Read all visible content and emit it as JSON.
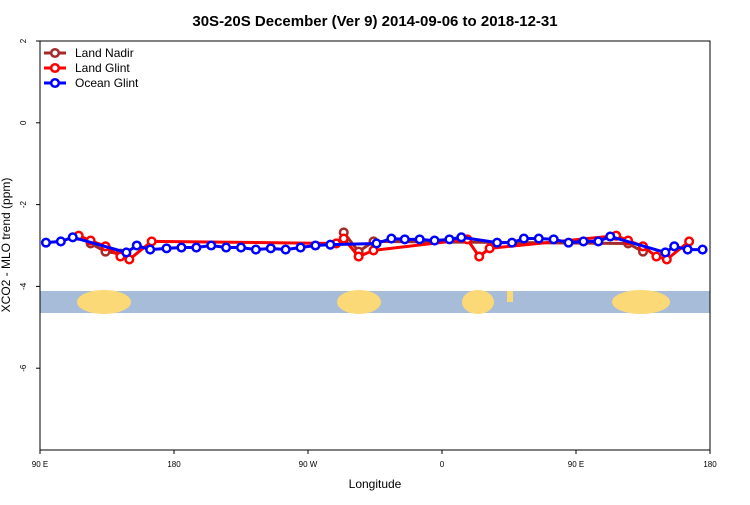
{
  "chart_data": {
    "type": "line",
    "title": "30S-20S December (Ver 9)   2014-09-06 to 2018-12-31",
    "xlabel": "Longitude",
    "ylabel": "XCO2 - MLO trend (ppm)",
    "xlim": [
      90,
      540
    ],
    "ylim": [
      -8,
      2
    ],
    "xticks": [
      {
        "value": 90,
        "label": "90 E"
      },
      180,
      {
        "value": 270,
        "label": "90 W"
      },
      {
        "value": 360,
        "label": "0"
      },
      {
        "value": 450,
        "label": "90 E"
      },
      {
        "value": 540,
        "label": "180"
      }
    ],
    "yticks": [
      -6,
      -4,
      -2,
      0,
      2
    ],
    "legend": "top-left",
    "series": [
      {
        "name": "Land Nadir",
        "color": "#a52a2a",
        "x": [
          124,
          134,
          144,
          289,
          294,
          304,
          314,
          485,
          495
        ],
        "values": [
          -2.95,
          -3.15,
          -3.2,
          null,
          -2.68,
          -3.15,
          -2.9,
          -2.95,
          -3.15
        ]
      },
      {
        "name": "Land Glint",
        "color": "#ff0000",
        "x": [
          116,
          124,
          134,
          144,
          150,
          165,
          289,
          294,
          304,
          314,
          377,
          385,
          392,
          477,
          485,
          495,
          504,
          511,
          526
        ],
        "values": [
          -2.76,
          -2.88,
          -3.02,
          -3.27,
          -3.34,
          -2.9,
          -2.95,
          -2.83,
          -3.27,
          -3.12,
          -2.85,
          -3.27,
          -3.07,
          -2.76,
          -2.88,
          -3.02,
          -3.27,
          -3.34,
          -2.9
        ]
      },
      {
        "name": "Ocean Glint",
        "color": "#0000ff",
        "x": [
          94,
          104,
          112,
          148,
          155,
          164,
          175,
          185,
          195,
          205,
          215,
          225,
          235,
          245,
          255,
          265,
          275,
          285,
          316,
          326,
          335,
          345,
          355,
          365,
          373,
          397,
          407,
          415,
          425,
          435,
          445,
          455,
          465,
          473,
          510,
          516,
          525,
          535
        ],
        "values": [
          -2.93,
          -2.9,
          -2.8,
          -3.17,
          -3.0,
          -3.1,
          -3.07,
          -3.05,
          -3.05,
          -3.0,
          -3.05,
          -3.05,
          -3.1,
          -3.07,
          -3.1,
          -3.05,
          -3.0,
          -2.98,
          -2.95,
          -2.83,
          -2.85,
          -2.85,
          -2.88,
          -2.85,
          -2.8,
          -2.93,
          -2.93,
          -2.83,
          -2.83,
          -2.85,
          -2.93,
          -2.9,
          -2.9,
          -2.78,
          -3.17,
          -3.02,
          -3.1,
          -3.1
        ]
      }
    ]
  }
}
